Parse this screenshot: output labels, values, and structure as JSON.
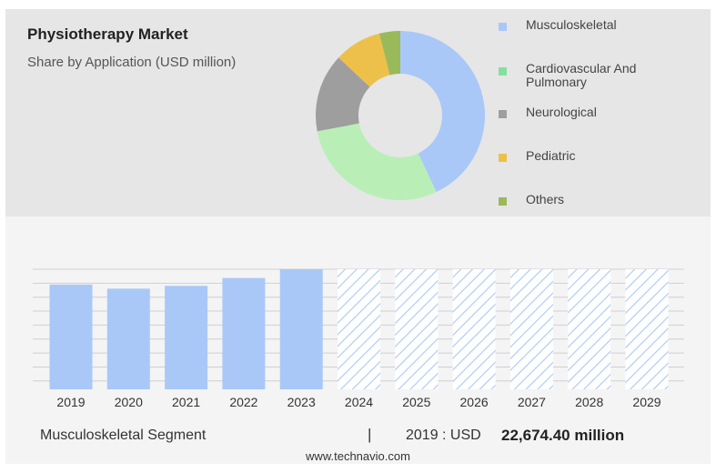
{
  "header": {
    "title": "Physiotherapy Market",
    "subtitle": "Share by Application (USD million)"
  },
  "chart_data": [
    {
      "type": "pie",
      "donut": true,
      "title": "Physiotherapy Market",
      "subtitle": "Share by Application (USD million)",
      "legend_placement": "right",
      "categories": [
        "Musculoskeletal",
        "Cardiovascular And Pulmonary",
        "Neurological",
        "Pediatric",
        "Others"
      ],
      "values": [
        43,
        29,
        15,
        9,
        4
      ],
      "colors": [
        "#a9c8f7",
        "#b9efb6",
        "#9e9e9e",
        "#edc04a",
        "#9ab95a"
      ],
      "legend_colors": [
        "#a9c8f7",
        "#84e09e",
        "#9e9e9e",
        "#edc04a",
        "#9ab95a"
      ]
    },
    {
      "type": "bar",
      "categories": [
        "2019",
        "2020",
        "2021",
        "2022",
        "2023",
        "2024",
        "2025",
        "2026",
        "2027",
        "2028",
        "2029"
      ],
      "values": [
        22674.4,
        21800,
        22400,
        24100,
        26000,
        null,
        null,
        null,
        null,
        null,
        null
      ],
      "forecast_years": [
        "2024",
        "2025",
        "2026",
        "2027",
        "2028",
        "2029"
      ],
      "forecast_value": 26000,
      "ylim": [
        0,
        26000
      ],
      "grid": true,
      "bar_color": "#a9c8f7",
      "forecast_hatch_color": "#a9c8f7"
    }
  ],
  "footer": {
    "segment": "Musculoskeletal Segment",
    "separator": "|",
    "year_label": "2019 : USD",
    "value_label": "22,674.40 million",
    "credit": "www.technavio.com"
  }
}
